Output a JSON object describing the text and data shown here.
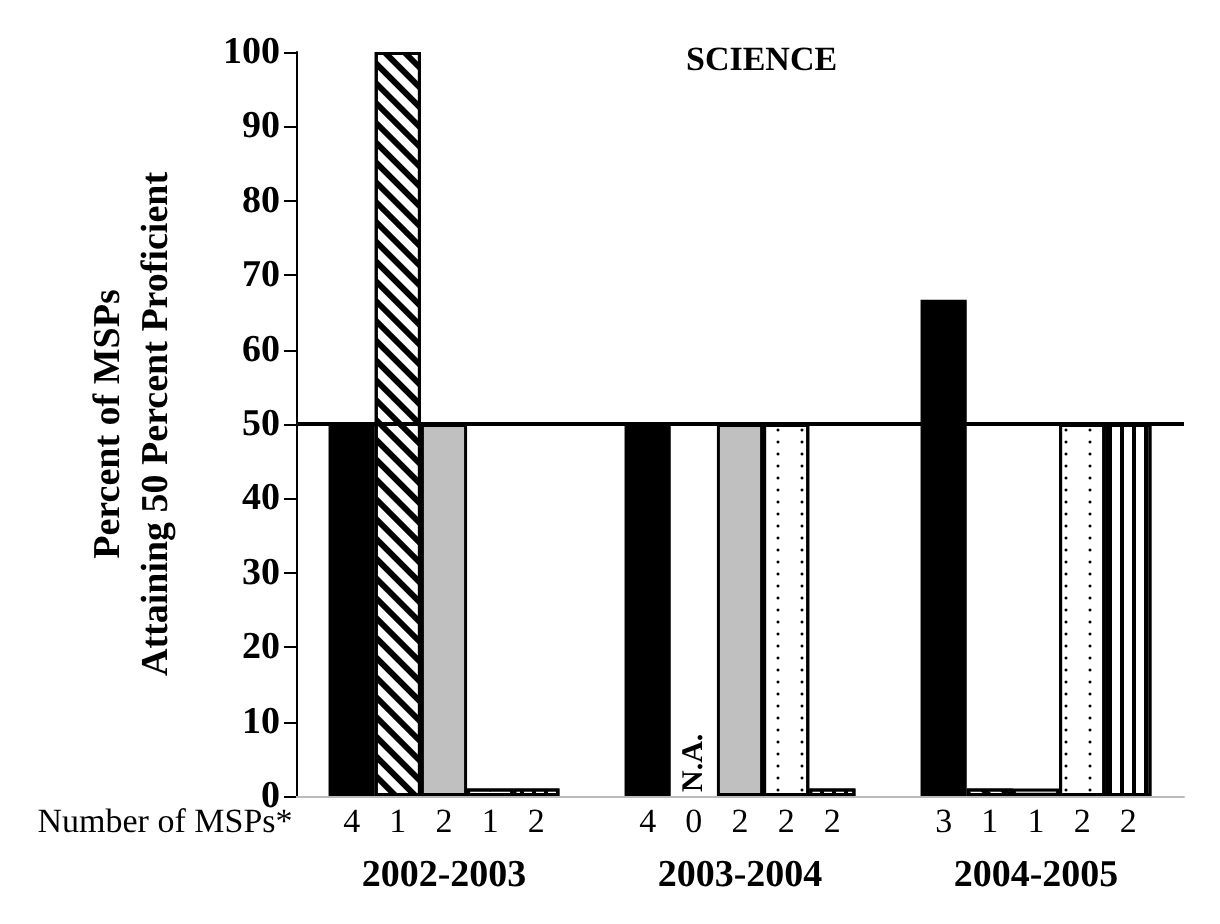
{
  "chart_data": {
    "type": "bar",
    "title": "SCIENCE",
    "ylabel": "Percent of MSPs\nAttaining 50 Percent Proficient",
    "xlabel": "Number of MSPs*",
    "categories": [
      "2002-2003",
      "2003-2004",
      "2004-2005"
    ],
    "series": [
      {
        "color": "#000000",
        "values": [
          50,
          50,
          66.7
        ]
      },
      {
        "color": "#ffffff",
        "values": [
          100,
          null,
          1
        ]
      },
      {
        "color": "#c0c0c0",
        "values": [
          50,
          50,
          1
        ]
      },
      {
        "color": "#ffffff",
        "values": [
          1,
          50,
          50
        ]
      },
      {
        "color": "#ffffff",
        "values": [
          1,
          1,
          50
        ]
      }
    ],
    "annotations": [
      "4",
      "1",
      "2",
      "1",
      "2",
      "4",
      "0",
      "2",
      "2",
      "2",
      "3",
      "1",
      "1",
      "2",
      "2",
      {
        "text": "N.A.",
        "x": "2003-2004",
        "y": 0
      }
    ],
    "ylim": [
      0,
      100
    ],
    "yticks": [
      0,
      10,
      20,
      30,
      40,
      50,
      60,
      70,
      80,
      90,
      100
    ],
    "ref_lines": [
      {
        "axis": "y",
        "value": 50,
        "color": "#000000"
      }
    ],
    "grid": false
  }
}
